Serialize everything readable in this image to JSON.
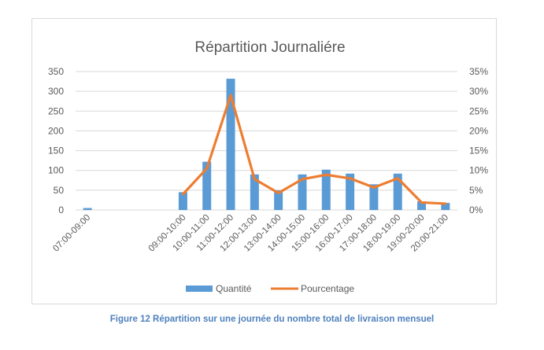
{
  "page": {
    "caption": "Figure 12 Répartition sur une journée du nombre total de livraison mensuel"
  },
  "colors": {
    "bar": "#5b9bd5",
    "line": "#ed7d31",
    "grid": "#d9d9d9",
    "axis_text": "#595959",
    "caption": "#4f81bd"
  },
  "chart_data": {
    "type": "bar",
    "title": "Répartition Journaliére",
    "categories": [
      "07:00-09:00",
      "",
      "",
      "",
      "09:00-10:00",
      "10:00-11:00",
      "11:00-12:00",
      "12:00-13:00",
      "13:00-14:00",
      "14:00-15:00",
      "15:00-16:00",
      "16:00-17:00",
      "17:00-18:00",
      "18:00-19:00",
      "19:00-20:00",
      "20:00-21:00"
    ],
    "series": [
      {
        "name": "Quantité",
        "type": "bar",
        "axis": "left",
        "values": [
          5,
          null,
          null,
          null,
          45,
          122,
          332,
          90,
          50,
          90,
          102,
          92,
          65,
          92,
          22,
          18
        ]
      },
      {
        "name": "Pourcentage",
        "type": "line",
        "axis": "right",
        "values": [
          null,
          null,
          null,
          null,
          0.04,
          0.105,
          0.29,
          0.078,
          0.043,
          0.078,
          0.089,
          0.08,
          0.057,
          0.08,
          0.019,
          0.016
        ]
      }
    ],
    "y_left": {
      "ylim": [
        0,
        350
      ],
      "ticks": [
        "0",
        "50",
        "100",
        "150",
        "200",
        "250",
        "300",
        "350"
      ]
    },
    "y_right": {
      "ylim": [
        0,
        0.35
      ],
      "ticks": [
        "0%",
        "5%",
        "10%",
        "15%",
        "20%",
        "25%",
        "30%",
        "35%"
      ]
    },
    "grid": true,
    "legend_position": "bottom"
  }
}
